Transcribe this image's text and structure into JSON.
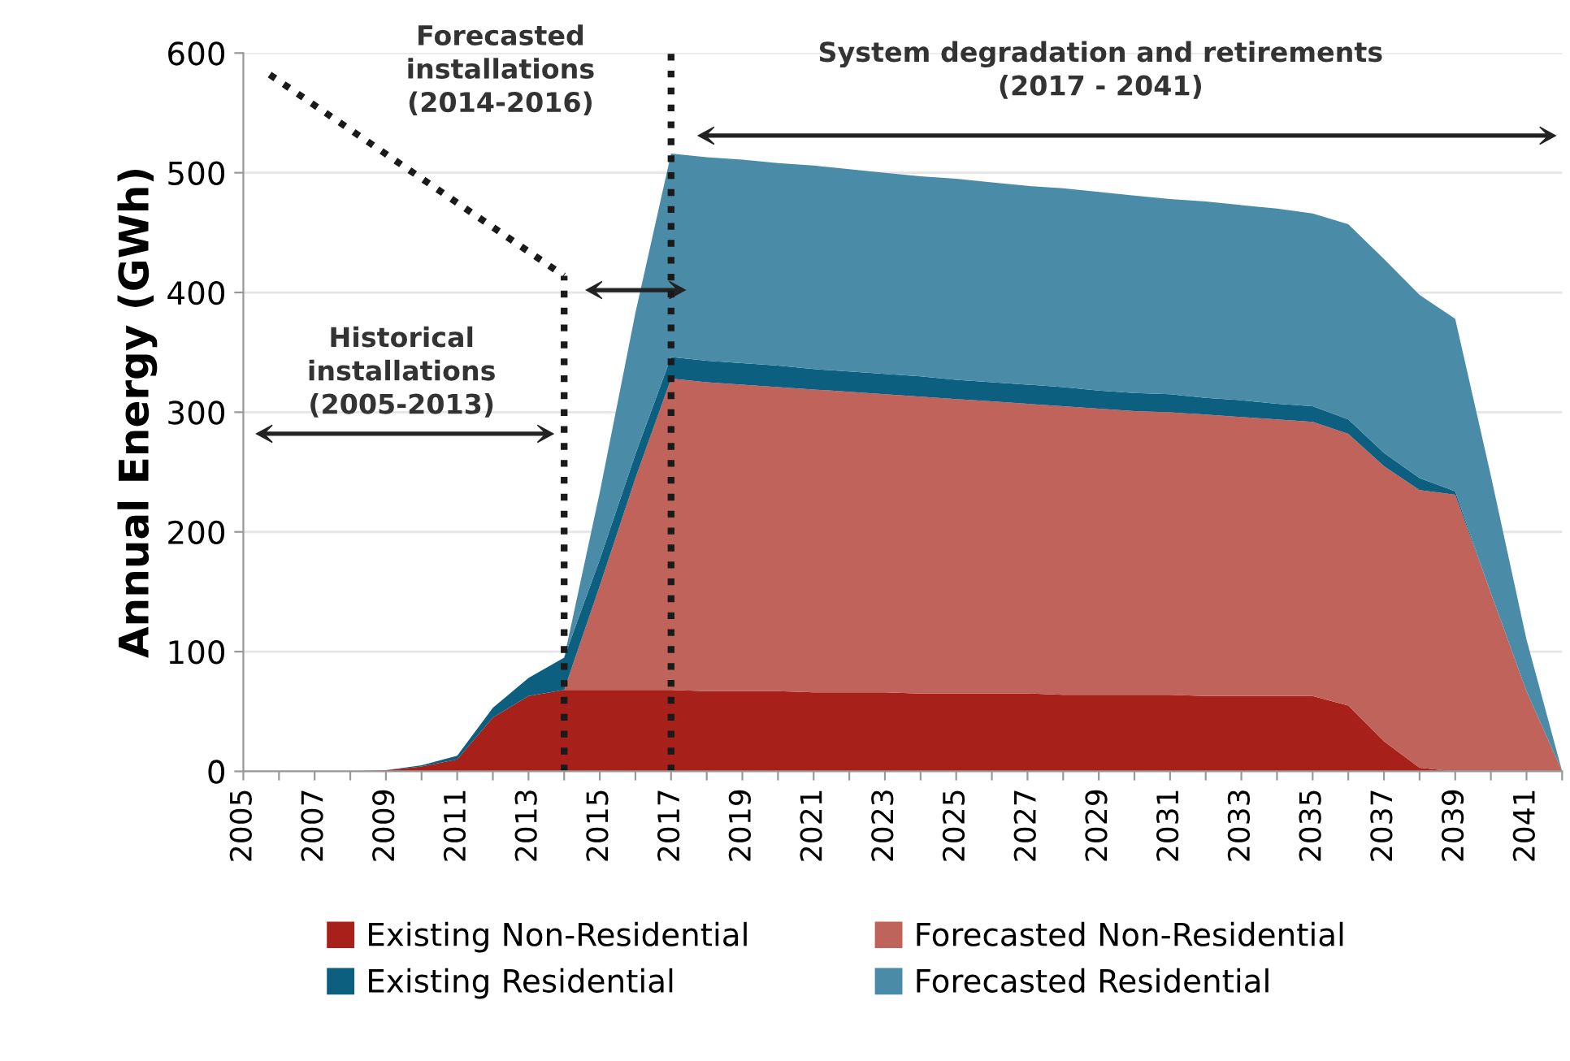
{
  "chart_data": {
    "type": "area",
    "stacked": true,
    "ylabel": "Annual Energy (GWh)",
    "x": [
      2005,
      2006,
      2007,
      2008,
      2009,
      2010,
      2011,
      2012,
      2013,
      2014,
      2015,
      2016,
      2017,
      2018,
      2019,
      2020,
      2021,
      2022,
      2023,
      2024,
      2025,
      2026,
      2027,
      2028,
      2029,
      2030,
      2031,
      2032,
      2033,
      2034,
      2035,
      2036,
      2037,
      2038,
      2039,
      2040,
      2041,
      2042
    ],
    "series": [
      {
        "name": "Existing Non-Residential",
        "color": "#a8201a",
        "values": [
          0,
          0,
          0,
          0,
          1,
          4,
          10,
          45,
          63,
          68,
          68,
          68,
          68,
          67,
          67,
          67,
          66,
          66,
          66,
          65,
          65,
          65,
          65,
          64,
          64,
          64,
          64,
          63,
          63,
          63,
          63,
          55,
          25,
          3,
          0,
          0,
          0,
          0
        ]
      },
      {
        "name": "Forecasted Non-Residential",
        "color": "#c0635a",
        "values": [
          0,
          0,
          0,
          0,
          0,
          0,
          0,
          0,
          0,
          0,
          87,
          177,
          260,
          258,
          256,
          254,
          253,
          251,
          249,
          248,
          246,
          244,
          242,
          241,
          239,
          237,
          236,
          235,
          233,
          231,
          229,
          227,
          230,
          232,
          231,
          149,
          67,
          0
        ]
      },
      {
        "name": "Existing Residential",
        "color": "#0c5f7f",
        "values": [
          0,
          0,
          0,
          0,
          0,
          1,
          3,
          8,
          15,
          27,
          22,
          20,
          18,
          18,
          18,
          18,
          17,
          17,
          17,
          17,
          16,
          16,
          16,
          16,
          15,
          15,
          15,
          14,
          14,
          13,
          13,
          12,
          11,
          10,
          3,
          0,
          0,
          0
        ]
      },
      {
        "name": "Forecasted Residential",
        "color": "#4a8ba8",
        "values": [
          0,
          0,
          0,
          0,
          0,
          0,
          0,
          0,
          0,
          0,
          56,
          118,
          170,
          170,
          170,
          169,
          170,
          169,
          168,
          167,
          168,
          167,
          166,
          166,
          166,
          165,
          163,
          164,
          163,
          163,
          161,
          163,
          162,
          153,
          144,
          98,
          43,
          0
        ]
      }
    ],
    "xlim": [
      2005,
      2042
    ],
    "xticks": [
      2005,
      {
        "value": 2006,
        "label": null
      },
      2007,
      {
        "value": 2008,
        "label": null
      },
      2009,
      {
        "value": 2010,
        "label": null
      },
      2011,
      {
        "value": 2012,
        "label": null
      },
      2013,
      {
        "value": 2014,
        "label": null
      },
      2015,
      {
        "value": 2016,
        "label": null
      },
      2017,
      {
        "value": 2018,
        "label": null
      },
      2019,
      {
        "value": 2020,
        "label": null
      },
      2021,
      {
        "value": 2022,
        "label": null
      },
      2023,
      {
        "value": 2024,
        "label": null
      },
      2025,
      {
        "value": 2026,
        "label": null
      },
      2027,
      {
        "value": 2028,
        "label": null
      },
      2029,
      {
        "value": 2030,
        "label": null
      },
      2031,
      {
        "value": 2032,
        "label": null
      },
      2033,
      {
        "value": 2034,
        "label": null
      },
      2035,
      {
        "value": 2036,
        "label": null
      },
      2037,
      {
        "value": 2038,
        "label": null
      },
      2039,
      {
        "value": 2040,
        "label": null
      },
      2041,
      {
        "value": 2042,
        "label": null
      }
    ],
    "ylim": [
      0,
      600
    ],
    "yticks": [
      0,
      100,
      200,
      300,
      400,
      500,
      600
    ],
    "grid": "y",
    "legend": "bottom",
    "ref_lines": [
      {
        "axis": "x",
        "value": 2014,
        "label": null,
        "line_style": "dotted",
        "color": "#1a1a1a"
      },
      {
        "axis": "x",
        "value": 2017,
        "label": null,
        "line_style": "dotted",
        "color": "#1a1a1a"
      }
    ],
    "annotations": [
      "Historical\ninstallations\n(2005-2013)",
      "Forecasted\ninstallations\n(2014-2016)",
      "System degradation and retirements\n(2017 - 2041)"
    ]
  }
}
